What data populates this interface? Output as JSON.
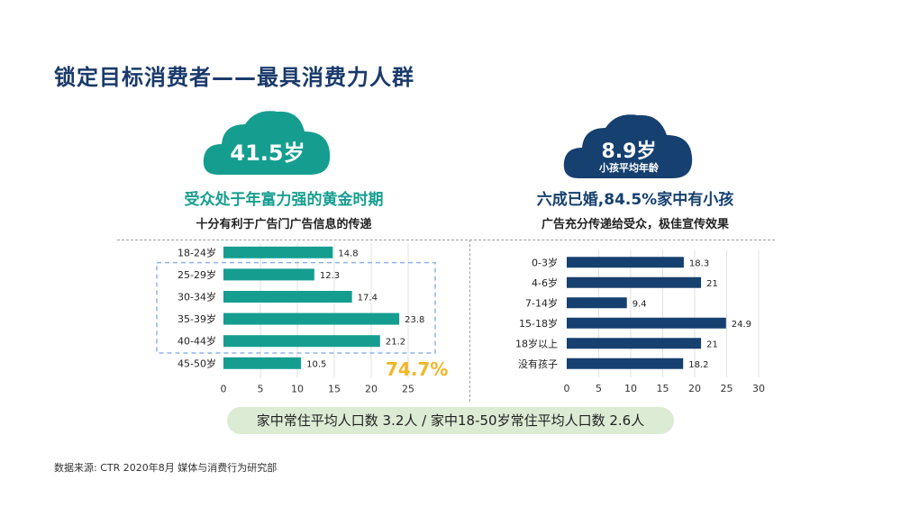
{
  "title": "锁定目标消费者——最具消费力人群",
  "left": {
    "cloud_value": "41.5岁",
    "headline": "受众处于年富力强的黄金时期",
    "subline": "十分有利于广告门广告信息的传递",
    "highlight_pct": "74.7%",
    "color": "#159e90"
  },
  "right": {
    "cloud_value": "8.9岁",
    "cloud_sub": "小孩平均年龄",
    "headline": "六成已婚,84.5%家中有小孩",
    "subline": "广告充分传递给受众，极佳宣传效果",
    "color": "#16406f"
  },
  "summary": "家中常住平均人口数 3.2人 / 家中18-50岁常住平均人口数 2.6人",
  "source": "数据来源: CTR 2020年8月 媒体与消费行为研究部",
  "chart_data": [
    {
      "type": "bar",
      "orientation": "horizontal",
      "categories": [
        "18-24岁",
        "25-29岁",
        "30-34岁",
        "35-39岁",
        "40-44岁",
        "45-50岁"
      ],
      "values": [
        14.8,
        12.3,
        17.4,
        23.8,
        21.2,
        10.5
      ],
      "xlim": [
        0,
        25
      ],
      "xticks": [
        0,
        5,
        10,
        15,
        20,
        25
      ],
      "grid": true,
      "color": "#159e90"
    },
    {
      "type": "bar",
      "orientation": "horizontal",
      "categories": [
        "0-3岁",
        "4-6岁",
        "7-14岁",
        "15-18岁",
        "18岁以上",
        "没有孩子"
      ],
      "values": [
        18.3,
        21,
        9.4,
        24.9,
        21,
        18.2
      ],
      "xlim": [
        0,
        30
      ],
      "xticks": [
        0,
        5,
        10,
        15,
        20,
        25,
        30
      ],
      "grid": true,
      "color": "#16406f"
    }
  ]
}
